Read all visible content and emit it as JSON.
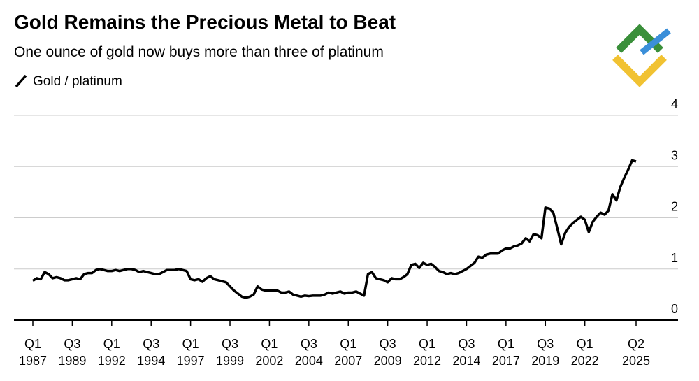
{
  "chart_data": {
    "type": "line",
    "title": "Gold Remains the Precious Metal to Beat",
    "subtitle": "One ounce of gold now buys more than three of platinum",
    "categories": [
      "Q1 1987",
      null,
      null,
      null,
      null,
      null,
      null,
      null,
      null,
      null,
      "Q3 1989",
      null,
      null,
      null,
      null,
      null,
      null,
      null,
      null,
      null,
      "Q1 1992",
      null,
      null,
      null,
      null,
      null,
      null,
      null,
      null,
      null,
      "Q3 1994",
      null,
      null,
      null,
      null,
      null,
      null,
      null,
      null,
      null,
      "Q1 1997",
      null,
      null,
      null,
      null,
      null,
      null,
      null,
      null,
      null,
      "Q3 1999",
      null,
      null,
      null,
      null,
      null,
      null,
      null,
      null,
      null,
      "Q1 2002",
      null,
      null,
      null,
      null,
      null,
      null,
      null,
      null,
      null,
      "Q3 2004",
      null,
      null,
      null,
      null,
      null,
      null,
      null,
      null,
      null,
      "Q1 2007",
      null,
      null,
      null,
      null,
      null,
      null,
      null,
      null,
      null,
      "Q3 2009",
      null,
      null,
      null,
      null,
      null,
      null,
      null,
      null,
      null,
      "Q1 2012",
      null,
      null,
      null,
      null,
      null,
      null,
      null,
      null,
      null,
      "Q3 2014",
      null,
      null,
      null,
      null,
      null,
      null,
      null,
      null,
      null,
      "Q1 2017",
      null,
      null,
      null,
      null,
      null,
      null,
      null,
      null,
      null,
      "Q3 2019",
      null,
      null,
      null,
      null,
      null,
      null,
      null,
      null,
      null,
      "Q1 2022",
      null,
      null,
      null,
      null,
      null,
      null,
      null,
      null,
      null,
      null,
      null,
      null,
      "Q2 2025"
    ],
    "series": [
      {
        "name": "Gold / platinum",
        "color": "#000000",
        "values": [
          0.77,
          0.82,
          0.8,
          0.94,
          0.9,
          0.82,
          0.84,
          0.82,
          0.78,
          0.78,
          0.8,
          0.82,
          0.8,
          0.9,
          0.92,
          0.92,
          0.98,
          1.0,
          0.98,
          0.96,
          0.96,
          0.98,
          0.96,
          0.98,
          1.0,
          1.0,
          0.98,
          0.94,
          0.96,
          0.94,
          0.92,
          0.9,
          0.9,
          0.94,
          0.98,
          0.98,
          0.98,
          1.0,
          0.98,
          0.96,
          0.8,
          0.78,
          0.8,
          0.75,
          0.82,
          0.86,
          0.8,
          0.78,
          0.76,
          0.74,
          0.66,
          0.58,
          0.52,
          0.46,
          0.44,
          0.46,
          0.5,
          0.66,
          0.6,
          0.58,
          0.58,
          0.58,
          0.58,
          0.54,
          0.54,
          0.56,
          0.5,
          0.48,
          0.46,
          0.48,
          0.47,
          0.48,
          0.48,
          0.48,
          0.5,
          0.54,
          0.52,
          0.54,
          0.56,
          0.52,
          0.54,
          0.54,
          0.56,
          0.52,
          0.48,
          0.9,
          0.94,
          0.82,
          0.8,
          0.78,
          0.74,
          0.82,
          0.8,
          0.8,
          0.84,
          0.9,
          1.08,
          1.1,
          1.02,
          1.12,
          1.08,
          1.1,
          1.04,
          0.96,
          0.94,
          0.9,
          0.92,
          0.9,
          0.92,
          0.96,
          1.0,
          1.06,
          1.12,
          1.24,
          1.22,
          1.28,
          1.3,
          1.3,
          1.3,
          1.36,
          1.4,
          1.4,
          1.44,
          1.46,
          1.5,
          1.6,
          1.54,
          1.68,
          1.66,
          1.6,
          2.2,
          2.18,
          2.1,
          1.8,
          1.48,
          1.7,
          1.82,
          1.9,
          1.96,
          2.02,
          1.96,
          1.72,
          1.92,
          2.02,
          2.1,
          2.06,
          2.14,
          2.46,
          2.34,
          2.6,
          2.78,
          2.94,
          3.12,
          3.1
        ]
      }
    ],
    "ylim": [
      0,
      4
    ],
    "yticks": [
      0,
      1,
      2,
      3,
      4
    ],
    "grid": true
  }
}
